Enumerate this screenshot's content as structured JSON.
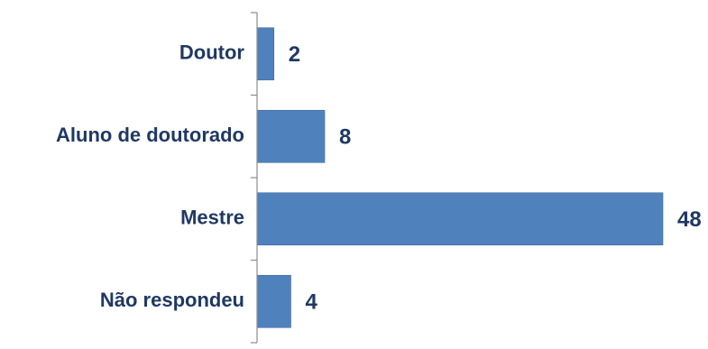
{
  "chart_data": {
    "type": "bar",
    "orientation": "horizontal",
    "categories": [
      "Doutor",
      "Aluno de doutorado",
      "Mestre",
      "Não respondeu"
    ],
    "values": [
      2,
      8,
      48,
      4
    ],
    "value_labels": [
      "2",
      "8",
      "48",
      "4"
    ],
    "title": "",
    "xlabel": "",
    "ylabel": "",
    "xlim": [
      0,
      48
    ],
    "grid": false,
    "legend": "none",
    "colors": {
      "bar": "#4F81BD",
      "text": "#1F3864",
      "axis": "#8C8C8C"
    }
  }
}
